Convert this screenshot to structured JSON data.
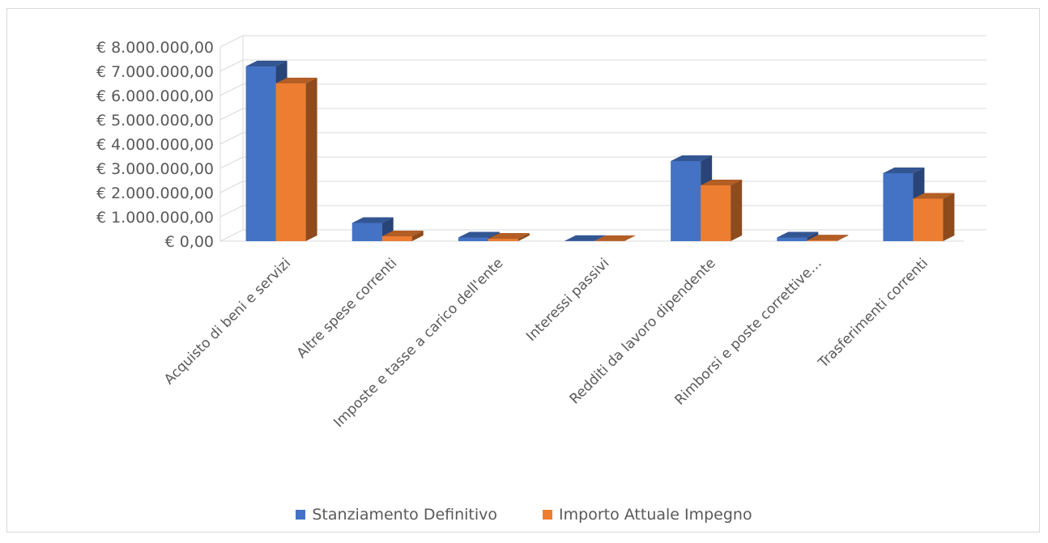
{
  "chart_data": {
    "type": "bar",
    "style": "3d-clustered-column",
    "categories": [
      "Acquisto di beni e servizi",
      "Altre spese correnti",
      "Imposte e tasse a carico dell'ente",
      "Interessi passivi",
      "Redditi da lavoro dipendente",
      "Rimborsi e poste correttive…",
      "Trasferimenti correnti"
    ],
    "series": [
      {
        "name": "Stanziamento Definitivo",
        "color": "#4472C4",
        "values": [
          7200000,
          750000,
          150000,
          10000,
          3300000,
          150000,
          2800000
        ]
      },
      {
        "name": "Importo Attuale Impegno",
        "color": "#ED7D31",
        "values": [
          6500000,
          200000,
          100000,
          5000,
          2300000,
          30000,
          1750000
        ]
      }
    ],
    "ylim": [
      0,
      8000000
    ],
    "yticks": [
      0,
      1000000,
      2000000,
      3000000,
      4000000,
      5000000,
      6000000,
      7000000,
      8000000
    ],
    "ytick_labels": [
      "€ 0,00",
      "€ 1.000.000,00",
      "€ 2.000.000,00",
      "€ 3.000.000,00",
      "€ 4.000.000,00",
      "€ 5.000.000,00",
      "€ 6.000.000,00",
      "€ 7.000.000,00",
      "€ 8.000.000,00"
    ],
    "grid": true,
    "legend_position": "bottom"
  }
}
